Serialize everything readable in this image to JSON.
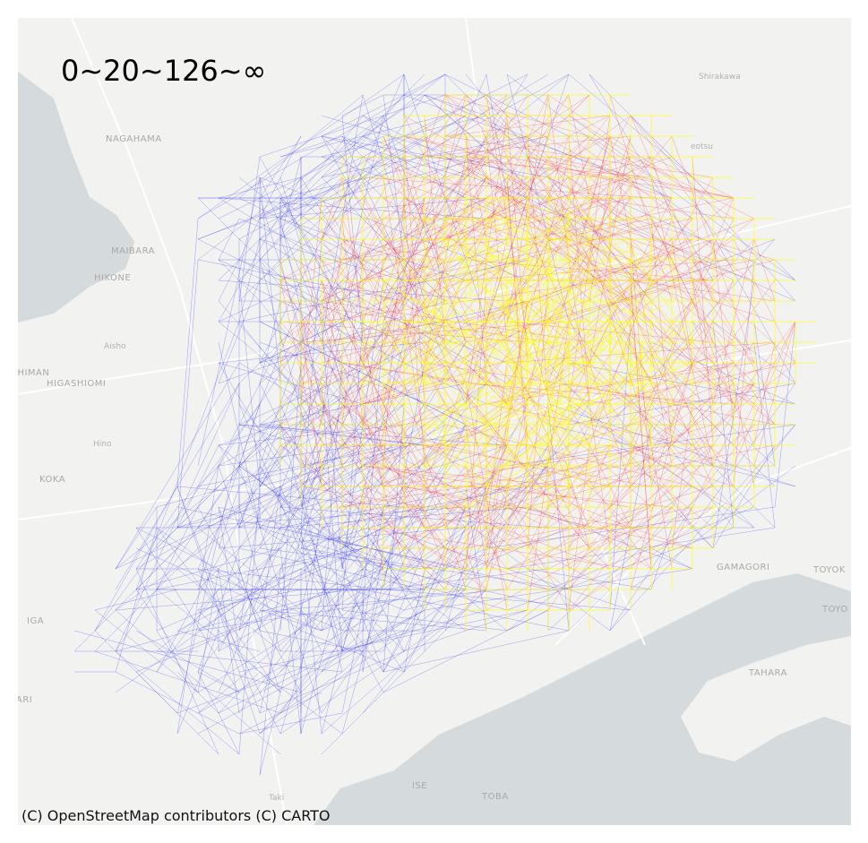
{
  "legend": {
    "title": "0~20~126~∞"
  },
  "attribution": "(C) OpenStreetMap contributors (C) CARTO",
  "colors": {
    "land": "#f2f2f0",
    "water": "#d5dadc",
    "road": "#ffffff",
    "band_low": "#ffff00",
    "band_mid": "#ff0000",
    "band_high": "#0000ff"
  },
  "places": [
    {
      "name": "NAGAHAMA",
      "size": "normal"
    },
    {
      "name": "MAIBARA",
      "size": "normal"
    },
    {
      "name": "HIKONE",
      "size": "normal"
    },
    {
      "name": "Aisho",
      "size": "small"
    },
    {
      "name": "IHIMAN",
      "size": "normal"
    },
    {
      "name": "HIGASHIOMI",
      "size": "normal"
    },
    {
      "name": "Hino",
      "size": "small"
    },
    {
      "name": "KOKA",
      "size": "normal"
    },
    {
      "name": "IGA",
      "size": "normal"
    },
    {
      "name": "ARI",
      "size": "normal"
    },
    {
      "name": "Shirakawa",
      "size": "small"
    },
    {
      "name": "eotsu",
      "size": "small"
    },
    {
      "name": "GAMAGORI",
      "size": "normal"
    },
    {
      "name": "TOYOK",
      "size": "normal"
    },
    {
      "name": "TOYO",
      "size": "normal"
    },
    {
      "name": "TAHARA",
      "size": "normal"
    },
    {
      "name": "ISE",
      "size": "normal"
    },
    {
      "name": "TOBA",
      "size": "normal"
    },
    {
      "name": "Taki",
      "size": "small"
    }
  ]
}
